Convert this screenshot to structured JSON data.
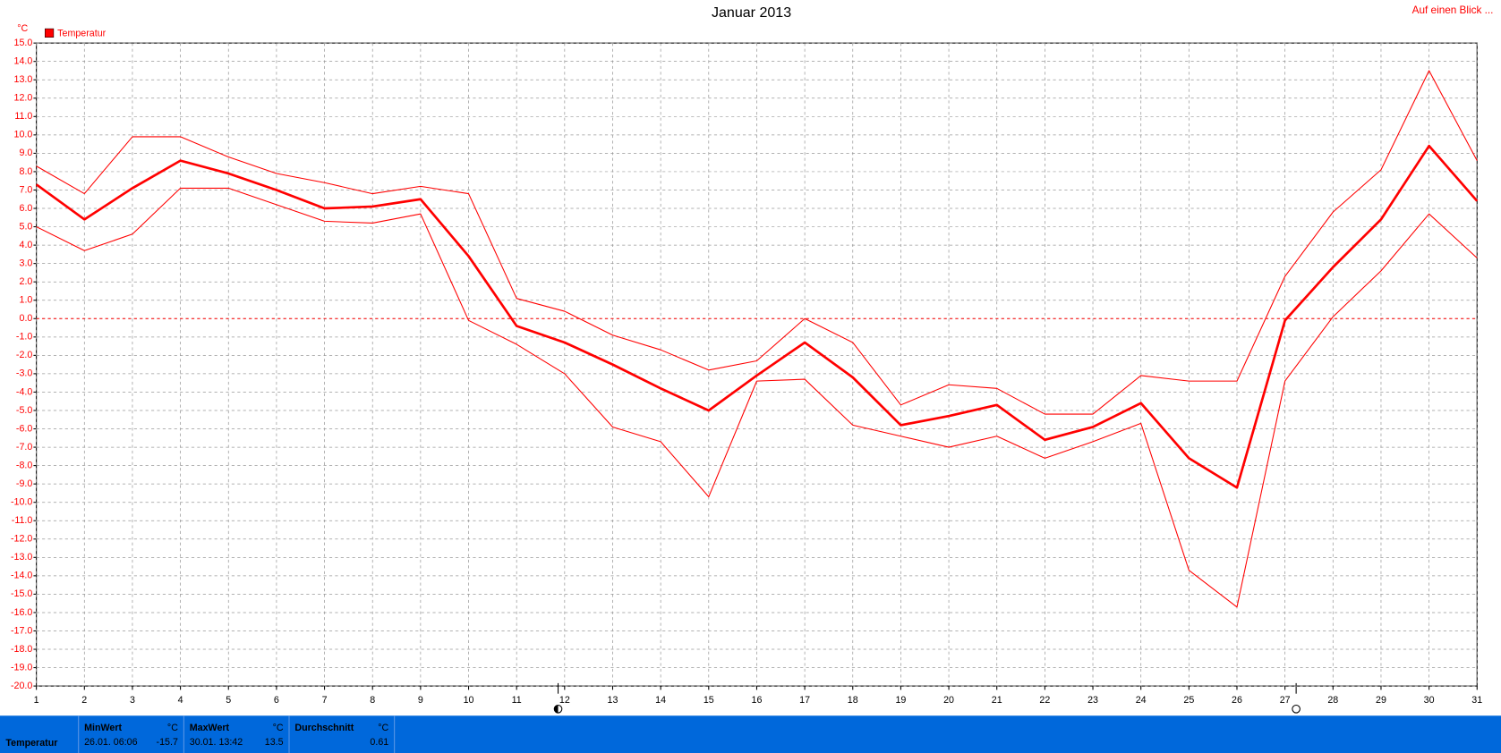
{
  "chart_data": {
    "type": "line",
    "title": "Januar 2013",
    "y_unit": "°C",
    "legend": "Temperatur",
    "link": "Auf einen Blick ...",
    "x": [
      1,
      2,
      3,
      4,
      5,
      6,
      7,
      8,
      9,
      10,
      11,
      12,
      13,
      14,
      15,
      16,
      17,
      18,
      19,
      20,
      21,
      22,
      23,
      24,
      25,
      26,
      27,
      28,
      29,
      30,
      31
    ],
    "xlim": [
      1,
      31
    ],
    "xticks": [
      1,
      2,
      3,
      4,
      5,
      6,
      7,
      8,
      9,
      10,
      11,
      12,
      13,
      14,
      15,
      16,
      17,
      18,
      19,
      20,
      21,
      22,
      23,
      24,
      25,
      26,
      27,
      28,
      29,
      30,
      31
    ],
    "ylim": [
      -20,
      15
    ],
    "yticks": [
      {
        "value": 15,
        "label": "15.0"
      },
      {
        "value": 14,
        "label": "14.0"
      },
      {
        "value": 13,
        "label": "13.0"
      },
      {
        "value": 12,
        "label": "12.0"
      },
      {
        "value": 11,
        "label": "11.0"
      },
      {
        "value": 10,
        "label": "10.0"
      },
      {
        "value": 9,
        "label": "9.0"
      },
      {
        "value": 8,
        "label": "8.0"
      },
      {
        "value": 7,
        "label": "7.0"
      },
      {
        "value": 6,
        "label": "6.0"
      },
      {
        "value": 5,
        "label": "5.0"
      },
      {
        "value": 4,
        "label": "4.0"
      },
      {
        "value": 3,
        "label": "3.0"
      },
      {
        "value": 2,
        "label": "2.0"
      },
      {
        "value": 1,
        "label": "1.0"
      },
      {
        "value": 0,
        "label": "0.0"
      },
      {
        "value": -1,
        "label": "-1.0"
      },
      {
        "value": -2,
        "label": "-2.0"
      },
      {
        "value": -3,
        "label": "-3.0"
      },
      {
        "value": -4,
        "label": "-4.0"
      },
      {
        "value": -5,
        "label": "-5.0"
      },
      {
        "value": -6,
        "label": "-6.0"
      },
      {
        "value": -7,
        "label": "-7.0"
      },
      {
        "value": -8,
        "label": "-8.0"
      },
      {
        "value": -9,
        "label": "-9.0"
      },
      {
        "value": -10,
        "label": "-10.0"
      },
      {
        "value": -11,
        "label": "-11.0"
      },
      {
        "value": -12,
        "label": "-12.0"
      },
      {
        "value": -13,
        "label": "-13.0"
      },
      {
        "value": -14,
        "label": "-14.0"
      },
      {
        "value": -15,
        "label": "-15.0"
      },
      {
        "value": -16,
        "label": "-16.0"
      },
      {
        "value": -17,
        "label": "-17.0"
      },
      {
        "value": -18,
        "label": "-18.0"
      },
      {
        "value": -19,
        "label": "-19.0"
      },
      {
        "value": -20,
        "label": "-20.0"
      }
    ],
    "grid": true,
    "zero_line": true,
    "color": "#ff0000",
    "series": [
      {
        "color": "#ff0000",
        "line_width": 1,
        "values": [
          8.3,
          6.8,
          9.9,
          9.9,
          8.8,
          7.9,
          7.4,
          6.8,
          7.2,
          6.8,
          1.1,
          0.4,
          -0.9,
          -1.7,
          -2.8,
          -2.3,
          0.0,
          -1.3,
          -4.7,
          -3.6,
          -3.8,
          -5.2,
          -5.2,
          -3.1,
          -3.4,
          -3.4,
          2.3,
          5.8,
          8.1,
          13.5,
          8.6
        ]
      },
      {
        "color": "#ff0000",
        "line_width": 2.5,
        "values": [
          7.3,
          5.4,
          7.1,
          8.6,
          7.9,
          7.0,
          6.0,
          6.1,
          6.5,
          3.4,
          -0.4,
          -1.3,
          -2.5,
          -3.8,
          -5.0,
          -3.1,
          -1.3,
          -3.2,
          -5.8,
          -5.3,
          -4.7,
          -6.6,
          -5.9,
          -4.6,
          -7.6,
          -9.2,
          -0.1,
          2.8,
          5.4,
          9.4,
          6.4
        ]
      },
      {
        "color": "#ff0000",
        "line_width": 1,
        "values": [
          5.0,
          3.7,
          4.6,
          7.1,
          7.1,
          6.2,
          5.3,
          5.2,
          5.7,
          -0.1,
          -1.4,
          -3.0,
          -5.9,
          -6.7,
          -9.7,
          -3.4,
          -3.3,
          -5.8,
          -6.4,
          -7.0,
          -6.4,
          -7.6,
          -6.7,
          -5.7,
          -13.7,
          -15.7,
          -3.4,
          0.1,
          2.6,
          5.7,
          3.3
        ]
      }
    ],
    "summary": {
      "row": "Temperatur",
      "min": {
        "label": "MinWert",
        "unit": "°C",
        "time": "26.01.  06:06",
        "value": -15.7
      },
      "max": {
        "label": "MaxWert",
        "unit": "°C",
        "time": "30.01.  13:42",
        "value": 13.5
      },
      "avg": {
        "label": "Durchschnitt",
        "unit": "°C",
        "value": 0.61
      }
    }
  }
}
